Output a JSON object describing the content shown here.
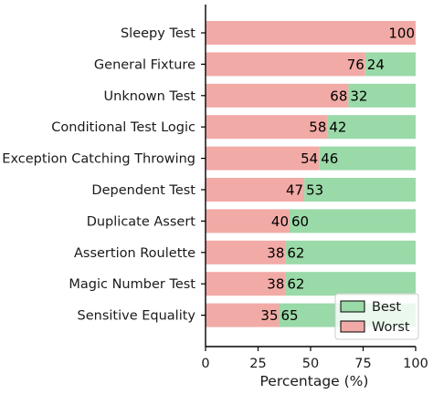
{
  "chart_data": {
    "type": "bar",
    "orientation": "horizontal",
    "stacked": true,
    "categories": [
      "Sleepy Test",
      "General Fixture",
      "Unknown Test",
      "Conditional Test Logic",
      "Exception Catching Throwing",
      "Dependent Test",
      "Duplicate Assert",
      "Assertion Roulette",
      "Magic Number Test",
      "Sensitive Equality"
    ],
    "series": [
      {
        "name": "Worst",
        "color": "#f2aaa6",
        "values": [
          100,
          76,
          68,
          58,
          54,
          47,
          40,
          38,
          38,
          35
        ]
      },
      {
        "name": "Best",
        "color": "#9ad9a8",
        "values": [
          0,
          24,
          32,
          42,
          46,
          53,
          60,
          62,
          62,
          65
        ]
      }
    ],
    "xlabel": "Percentage (%)",
    "ylabel": "",
    "xlim": [
      0,
      100
    ],
    "xticks": [
      "0",
      "25",
      "50",
      "75",
      "100"
    ],
    "grid": false,
    "legend": {
      "placement": "bottom-right",
      "order": [
        "Best",
        "Worst"
      ]
    }
  }
}
